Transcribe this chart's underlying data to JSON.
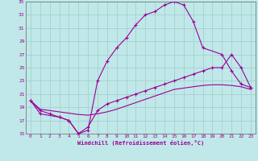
{
  "bg_color": "#c0e8e8",
  "grid_color": "#a0cccc",
  "line_color": "#990099",
  "spine_color": "#666666",
  "xlim": [
    -0.5,
    23.5
  ],
  "ylim": [
    15,
    35
  ],
  "xticks": [
    0,
    1,
    2,
    3,
    4,
    5,
    6,
    7,
    8,
    9,
    10,
    11,
    12,
    13,
    14,
    15,
    16,
    17,
    18,
    19,
    20,
    21,
    22,
    23
  ],
  "yticks": [
    15,
    17,
    19,
    21,
    23,
    25,
    27,
    29,
    31,
    33,
    35
  ],
  "xlabel": "Windchill (Refroidissement éolien,°C)",
  "line1_x": [
    0,
    1,
    3,
    4,
    5,
    6,
    7,
    8,
    9,
    10,
    11,
    12,
    13,
    14,
    15,
    16,
    17,
    18,
    20,
    21,
    22,
    23
  ],
  "line1_y": [
    20,
    18,
    17.5,
    17,
    15,
    15.5,
    23,
    26,
    28,
    29.5,
    31.5,
    33,
    33.5,
    34.5,
    35,
    34.5,
    32,
    28,
    27,
    24.5,
    22.5,
    22
  ],
  "line2_x": [
    0,
    1,
    2,
    3,
    4,
    5,
    6,
    7,
    8,
    9,
    10,
    11,
    12,
    13,
    14,
    15,
    16,
    17,
    18,
    19,
    20,
    21,
    22,
    23
  ],
  "line2_y": [
    20,
    18.5,
    18,
    17.5,
    17,
    15,
    16,
    18.5,
    19.5,
    20,
    20.5,
    21,
    21.5,
    22,
    22.5,
    23,
    23.5,
    24,
    24.5,
    25,
    25,
    27,
    25,
    22
  ],
  "line3_x": [
    0,
    1,
    2,
    3,
    4,
    5,
    6,
    7,
    8,
    9,
    10,
    11,
    12,
    13,
    14,
    15,
    16,
    17,
    18,
    19,
    20,
    21,
    22,
    23
  ],
  "line3_y": [
    20,
    18.7,
    18.5,
    18.3,
    18.1,
    17.9,
    17.8,
    18.0,
    18.3,
    18.7,
    19.2,
    19.7,
    20.2,
    20.7,
    21.2,
    21.7,
    21.9,
    22.1,
    22.3,
    22.4,
    22.4,
    22.3,
    22.1,
    21.7
  ]
}
